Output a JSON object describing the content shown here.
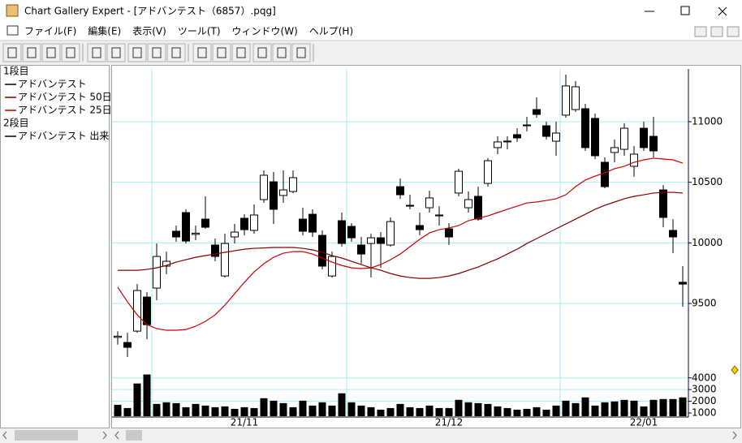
{
  "window": {
    "title": "Chart Gallery Expert - [アドバンテスト（6857）.pqg]",
    "menu": [
      "ファイル(F)",
      "編集(E)",
      "表示(V)",
      "ツール(T)",
      "ウィンドウ(W)",
      "ヘルプ(H)"
    ]
  },
  "chart_data": [
    {
      "type": "candlestick",
      "panel": "1段目",
      "ylim": [
        8911,
        11435
      ],
      "yticks": [
        9500,
        10000,
        10500,
        11000
      ],
      "grid": true,
      "series": [
        {
          "name": "アドバンテスト",
          "color": "#000000",
          "open": [
            9220,
            9178,
            9272,
            9553,
            9627,
            9808,
            10096,
            10250,
            10070,
            10196,
            9982,
            9727,
            10049,
            10203,
            10103,
            10357,
            10504,
            10391,
            10424,
            10196,
            10236,
            10062,
            9727,
            10183,
            10136,
            9982,
            9995,
            10042,
            9982,
            10464,
            10310,
            10143,
            10290,
            10223,
            10116,
            10411,
            10290,
            10384,
            10491,
            10786,
            10833,
            10893,
            10966,
            11100,
            10966,
            10839,
            11054,
            11100,
            11107,
            11027,
            10665,
            10746,
            10772,
            10632,
            10946,
            10879,
            10437,
            10103,
            9675
          ],
          "high": [
            9270,
            9258,
            9660,
            9593,
            9995,
            9928,
            10143,
            10277,
            10143,
            10384,
            10036,
            10076,
            10156,
            10236,
            10317,
            10598,
            10585,
            10598,
            10598,
            10290,
            10277,
            10103,
            9928,
            10250,
            10163,
            10049,
            10076,
            10089,
            10210,
            10531,
            10397,
            10250,
            10431,
            10303,
            10163,
            10612,
            10424,
            10464,
            10699,
            10879,
            10879,
            10946,
            11040,
            11201,
            11000,
            11000,
            11388,
            11335,
            11147,
            11067,
            10705,
            10853,
            10987,
            10799,
            11000,
            11040,
            10477,
            10196,
            9808
          ],
          "low": [
            9160,
            9058,
            9258,
            9205,
            9527,
            9741,
            10009,
            9995,
            10022,
            10116,
            9848,
            9714,
            9995,
            10062,
            10076,
            10330,
            10156,
            10330,
            10411,
            10062,
            10049,
            9781,
            9714,
            9968,
            10009,
            9828,
            9714,
            9794,
            9968,
            10364,
            10277,
            10062,
            10250,
            10143,
            9982,
            10384,
            10250,
            10183,
            10464,
            10732,
            10772,
            10833,
            10920,
            11033,
            10853,
            10719,
            11033,
            11080,
            10759,
            10692,
            10451,
            10665,
            10719,
            10545,
            10759,
            10705,
            10129,
            9915,
            9473
          ],
          "close": [
            9230,
            9138,
            9607,
            9325,
            9888,
            9848,
            10049,
            10015,
            10080,
            10129,
            9888,
            9995,
            10089,
            10109,
            10230,
            10558,
            10277,
            10437,
            10538,
            10096,
            10089,
            9808,
            9888,
            9995,
            10042,
            9908,
            10042,
            9995,
            10176,
            10397,
            10303,
            10109,
            10371,
            10230,
            10049,
            10591,
            10357,
            10196,
            10678,
            10833,
            10840,
            10866,
            10973,
            11060,
            10879,
            10906,
            11295,
            11288,
            10786,
            10719,
            10464,
            10786,
            10946,
            10732,
            10786,
            10759,
            10210,
            10049,
            9660
          ]
        },
        {
          "name": "アドバンテスト 50日",
          "type": "line",
          "color": "#800000",
          "values": [
            9774,
            9774,
            9774,
            9781,
            9794,
            9814,
            9841,
            9861,
            9881,
            9895,
            9908,
            9922,
            9935,
            9948,
            9955,
            9958,
            9962,
            9962,
            9962,
            9955,
            9942,
            9922,
            9895,
            9875,
            9848,
            9821,
            9794,
            9774,
            9747,
            9727,
            9714,
            9707,
            9707,
            9714,
            9727,
            9747,
            9774,
            9801,
            9835,
            9868,
            9908,
            9948,
            9995,
            10035,
            10076,
            10116,
            10156,
            10196,
            10236,
            10277,
            10310,
            10337,
            10364,
            10384,
            10397,
            10411,
            10417,
            10417,
            10411
          ]
        },
        {
          "name": "アドバンテスト 25日",
          "type": "line",
          "color": "#cc0000",
          "values": [
            9634,
            9513,
            9406,
            9325,
            9292,
            9279,
            9279,
            9285,
            9312,
            9352,
            9406,
            9486,
            9580,
            9674,
            9761,
            9828,
            9881,
            9915,
            9928,
            9928,
            9908,
            9875,
            9841,
            9814,
            9794,
            9788,
            9794,
            9821,
            9861,
            9908,
            9969,
            10029,
            10082,
            10109,
            10123,
            10143,
            10183,
            10203,
            10223,
            10250,
            10277,
            10303,
            10330,
            10337,
            10350,
            10364,
            10397,
            10464,
            10518,
            10551,
            10578,
            10612,
            10632,
            10665,
            10685,
            10699,
            10692,
            10685,
            10658
          ]
        }
      ]
    },
    {
      "type": "bar",
      "panel": "2段目",
      "ylim": [
        720,
        4330
      ],
      "yticks": [
        1000,
        2000,
        3000,
        4000
      ],
      "grid": true,
      "categories": [
        null,
        null,
        null,
        null,
        null,
        null,
        null,
        null,
        null,
        null,
        null,
        null,
        null,
        "21/11",
        null,
        null,
        null,
        null,
        null,
        null,
        null,
        null,
        null,
        null,
        null,
        null,
        null,
        null,
        null,
        null,
        null,
        null,
        null,
        null,
        "21/12",
        null,
        null,
        null,
        null,
        null,
        null,
        null,
        null,
        null,
        null,
        null,
        null,
        null,
        null,
        null,
        null,
        null,
        null,
        null,
        "22/01",
        null,
        null,
        null,
        null
      ],
      "series": [
        {
          "name": "アドバンテスト 出来",
          "color": "#000000",
          "values": [
            1700,
            1420,
            3520,
            4290,
            1770,
            1910,
            1840,
            1490,
            1770,
            1630,
            1490,
            1560,
            1350,
            1490,
            1420,
            2260,
            2050,
            1840,
            1490,
            2050,
            1630,
            1910,
            1630,
            2680,
            1910,
            1630,
            1490,
            1280,
            1420,
            1770,
            1490,
            1420,
            1630,
            1420,
            1420,
            2120,
            1910,
            1840,
            1770,
            1560,
            1420,
            1280,
            1350,
            1490,
            1280,
            1630,
            2050,
            1840,
            2330,
            1630,
            1910,
            1980,
            2120,
            2050,
            1560,
            2120,
            2190,
            2190,
            2330
          ]
        }
      ]
    }
  ]
}
